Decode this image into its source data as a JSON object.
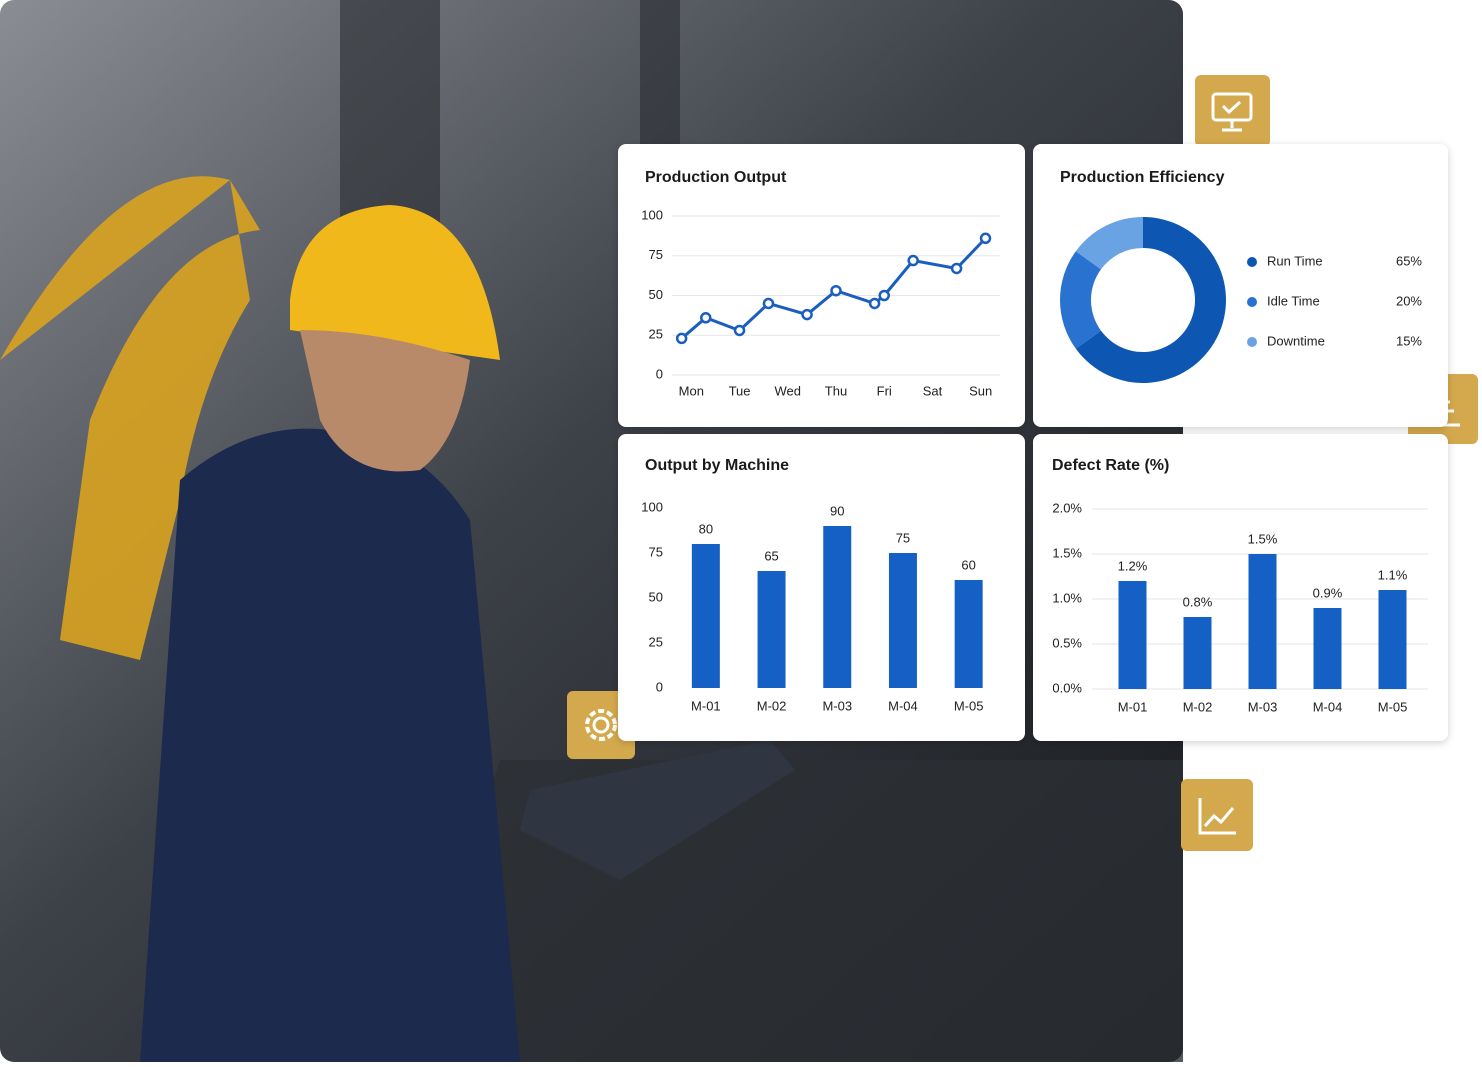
{
  "chart_data": [
    {
      "type": "line",
      "title": "Production Output",
      "color": "#1a5fbf",
      "grid": true,
      "x": [
        -0.2,
        0.3,
        1.0,
        1.6,
        2.4,
        3.0,
        3.8,
        4.0,
        4.6,
        5.5,
        6.1
      ],
      "values": [
        23,
        36,
        28,
        45,
        38,
        53,
        45,
        50,
        72,
        67,
        86
      ],
      "xlim": [
        -0.4,
        6.4
      ],
      "xticks": [
        {
          "value": 0,
          "label": "Mon"
        },
        {
          "value": 1,
          "label": "Tue"
        },
        {
          "value": 2,
          "label": "Wed"
        },
        {
          "value": 3,
          "label": "Thu"
        },
        {
          "value": 4,
          "label": "Fri"
        },
        {
          "value": 5,
          "label": "Sat"
        },
        {
          "value": 6,
          "label": "Sun"
        }
      ],
      "ylim": [
        0,
        100
      ],
      "yticks": [
        0,
        25,
        50,
        75,
        100
      ]
    },
    {
      "type": "donut",
      "title": "Production Efficiency",
      "categories": [
        "Run Time",
        "Idle Time",
        "Downtime"
      ],
      "values": [
        65,
        20,
        15
      ],
      "value_labels": [
        "65%",
        "20%",
        "15%"
      ],
      "colors": [
        "#0d57b3",
        "#2a72cf",
        "#6aa3e3"
      ]
    },
    {
      "type": "bar",
      "title": "Output by Machine",
      "color": "#1560c4",
      "grid": false,
      "categories": [
        "M-01",
        "M-02",
        "M-03",
        "M-04",
        "M-05"
      ],
      "values": [
        80,
        65,
        90,
        75,
        60
      ],
      "ylim": [
        0,
        100
      ],
      "yticks": [
        0,
        25,
        50,
        75,
        100
      ]
    },
    {
      "type": "bar",
      "title": "Defect Rate (%)",
      "color": "#1560c4",
      "grid": true,
      "categories": [
        "M-01",
        "M-02",
        "M-03",
        "M-04",
        "M-05"
      ],
      "values": [
        1.2,
        0.8,
        1.5,
        0.9,
        1.1
      ],
      "value_labels": [
        "1.2%",
        "0.8%",
        "1.5%",
        "0.9%",
        "1.1%"
      ],
      "ylim": [
        0,
        2
      ],
      "yticks": [
        {
          "value": 0,
          "label": "0.0%"
        },
        {
          "value": 0.5,
          "label": "0.5%"
        },
        {
          "value": 1,
          "label": "1.0%"
        },
        {
          "value": 1.5,
          "label": "1.5%"
        },
        {
          "value": 2,
          "label": "2.0%"
        }
      ]
    }
  ]
}
